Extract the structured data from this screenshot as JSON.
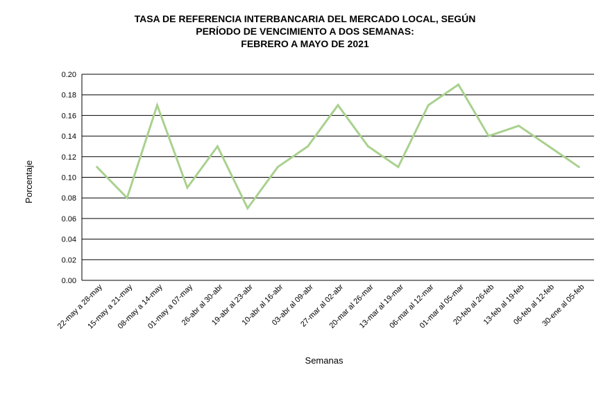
{
  "chart_data": {
    "type": "line",
    "title_lines": [
      "TASA  DE REFERENCIA INTERBANCARIA DEL MERCADO LOCAL,  SEGÚN",
      "PERÍODO DE VENCIMIENTO A DOS SEMANAS:",
      "FEBRERO A MAYO  DE 2021"
    ],
    "xlabel": "Semanas",
    "ylabel": "Porcentaje",
    "ylim": [
      0,
      0.2
    ],
    "yticks": [
      "0.00",
      "0.02",
      "0.04",
      "0.06",
      "0.08",
      "0.10",
      "0.12",
      "0.14",
      "0.16",
      "0.18",
      "0.20"
    ],
    "grid": true,
    "categories": [
      "22-may a 28-may",
      "15-may a 21-may",
      "08-may a 14-may",
      "01-may a 07-may",
      "26-abr al 30-abr",
      "19-abr al 23-abr",
      "10-abr al 16-abr",
      "03-abr al 09-abr",
      "27-mar al 02-abr",
      "20-mar al 26-mar",
      "13-mar al 19-mar",
      "06-mar al 12-mar",
      "01-mar al 05-mar",
      "20-feb al 26-feb",
      "13-feb al 19-feb",
      "06-feb al 12-feb",
      "30-ene al 05-feb"
    ],
    "values": [
      0.11,
      0.08,
      0.17,
      0.09,
      0.13,
      0.07,
      0.11,
      0.13,
      0.17,
      0.13,
      0.11,
      0.17,
      0.19,
      0.14,
      0.15,
      0.13,
      0.11
    ],
    "line_color": "#a9d18e",
    "grid_color": "#000000"
  }
}
